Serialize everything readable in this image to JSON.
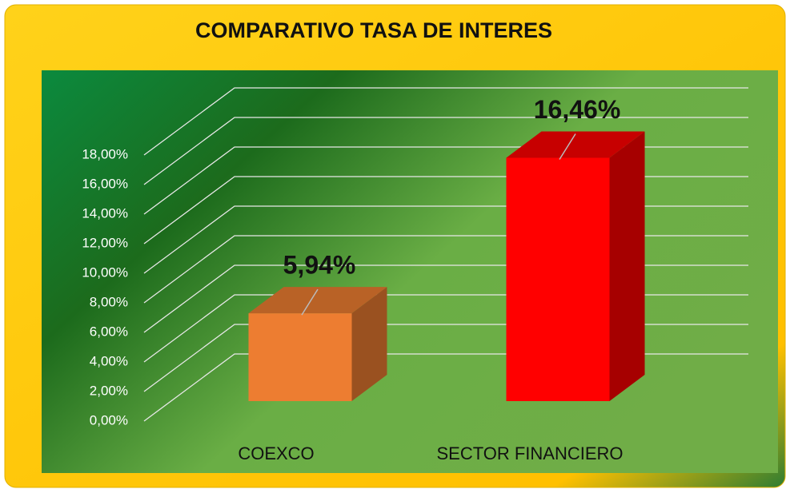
{
  "chart_data": {
    "type": "bar3d",
    "title": "COMPARATIVO TASA DE INTERES",
    "categories": [
      "COEXCO",
      "SECTOR FINANCIERO"
    ],
    "values": [
      5.94,
      16.46
    ],
    "value_labels": [
      "5,94%",
      "16,46%"
    ],
    "colors": [
      "#ED7D31",
      "#FF0000"
    ],
    "ylim": [
      0,
      18
    ],
    "yticks": [
      {
        "value": 0,
        "label": "0,00%"
      },
      {
        "value": 2,
        "label": "2,00%"
      },
      {
        "value": 4,
        "label": "4,00%"
      },
      {
        "value": 6,
        "label": "6,00%"
      },
      {
        "value": 8,
        "label": "8,00%"
      },
      {
        "value": 10,
        "label": "10,00%"
      },
      {
        "value": 12,
        "label": "12,00%"
      },
      {
        "value": 14,
        "label": "14,00%"
      },
      {
        "value": 16,
        "label": "16,00%"
      },
      {
        "value": 18,
        "label": "18,00%"
      }
    ],
    "grid": true
  }
}
